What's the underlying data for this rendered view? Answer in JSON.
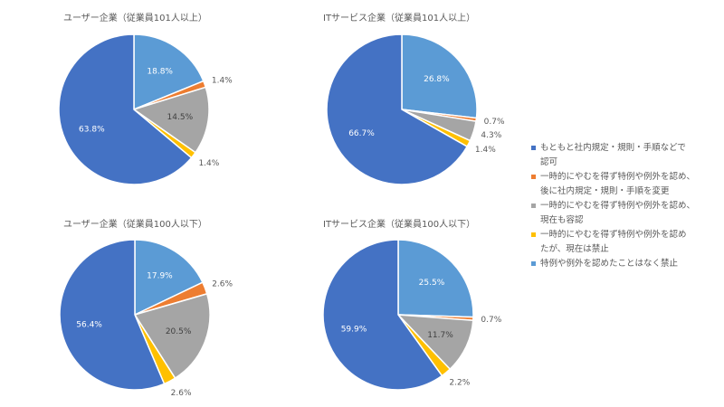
{
  "legend": {
    "items": [
      {
        "label": "もともと社内規定・規則・手順などで",
        "label2": "認可",
        "color": "#4472C4"
      },
      {
        "label": "一時的にやむを得ず特例や例外を認め、",
        "label2": "後に社内規定・規則・手順を変更",
        "color": "#ED7D31"
      },
      {
        "label": "一時的にやむを得ず特例や例外を認め、",
        "label2": "現在も容認",
        "color": "#A5A5A5"
      },
      {
        "label": "一時的にやむを得ず特例や例外を認め",
        "label2": "たが、現在は禁止",
        "color": "#FFC000"
      },
      {
        "label": "特例や例外を認めたことはなく禁止",
        "label2": "",
        "color": "#5B9BD5"
      }
    ]
  },
  "chart_data": [
    {
      "type": "pie",
      "title": "ユーザー企業（従業員101人以上）",
      "categories": [
        "もともと社内規定・規則・手順などで認可",
        "一時的にやむを得ず特例や例外を認め、後に社内規定・規則・手順を変更",
        "一時的にやむを得ず特例や例外を認め、現在も容認",
        "一時的にやむを得ず特例や例外を認めたが、現在は禁止",
        "特例や例外を認めたことはなく禁止"
      ],
      "values": [
        63.8,
        1.4,
        14.5,
        1.4,
        18.8
      ],
      "labels": [
        "63.8%",
        "1.4%",
        "14.5%",
        "1.4%",
        "18.8%"
      ]
    },
    {
      "type": "pie",
      "title": "ITサービス企業（従業員101人以上）",
      "categories": [
        "もともと社内規定・規則・手順などで認可",
        "一時的にやむを得ず特例や例外を認め、後に社内規定・規則・手順を変更",
        "一時的にやむを得ず特例や例外を認め、現在も容認",
        "一時的にやむを得ず特例や例外を認めたが、現在は禁止",
        "特例や例外を認めたことはなく禁止"
      ],
      "values": [
        66.7,
        0.7,
        4.3,
        1.4,
        26.8
      ],
      "labels": [
        "66.7%",
        "0.7%",
        "4.3%",
        "1.4%",
        "26.8%"
      ]
    },
    {
      "type": "pie",
      "title": "ユーザー企業（従業員100人以下）",
      "categories": [
        "もともと社内規定・規則・手順などで認可",
        "一時的にやむを得ず特例や例外を認め、後に社内規定・規則・手順を変更",
        "一時的にやむを得ず特例や例外を認め、現在も容認",
        "一時的にやむを得ず特例や例外を認めたが、現在は禁止",
        "特例や例外を認めたことはなく禁止"
      ],
      "values": [
        56.4,
        2.6,
        20.5,
        2.6,
        17.9
      ],
      "labels": [
        "56.4%",
        "2.6%",
        "20.5%",
        "2.6%",
        "17.9%"
      ]
    },
    {
      "type": "pie",
      "title": "ITサービス企業（従業員100人以下）",
      "categories": [
        "もともと社内規定・規則・手順などで認可",
        "一時的にやむを得ず特例や例外を認め、後に社内規定・規則・手順を変更",
        "一時的にやむを得ず特例や例外を認め、現在も容認",
        "一時的にやむを得ず特例や例外を認めたが、現在は禁止",
        "特例や例外を認めたことはなく禁止"
      ],
      "values": [
        59.9,
        0.7,
        11.7,
        2.2,
        25.5
      ],
      "labels": [
        "59.9%",
        "0.7%",
        "11.7%",
        "2.2%",
        "25.5%"
      ]
    }
  ]
}
